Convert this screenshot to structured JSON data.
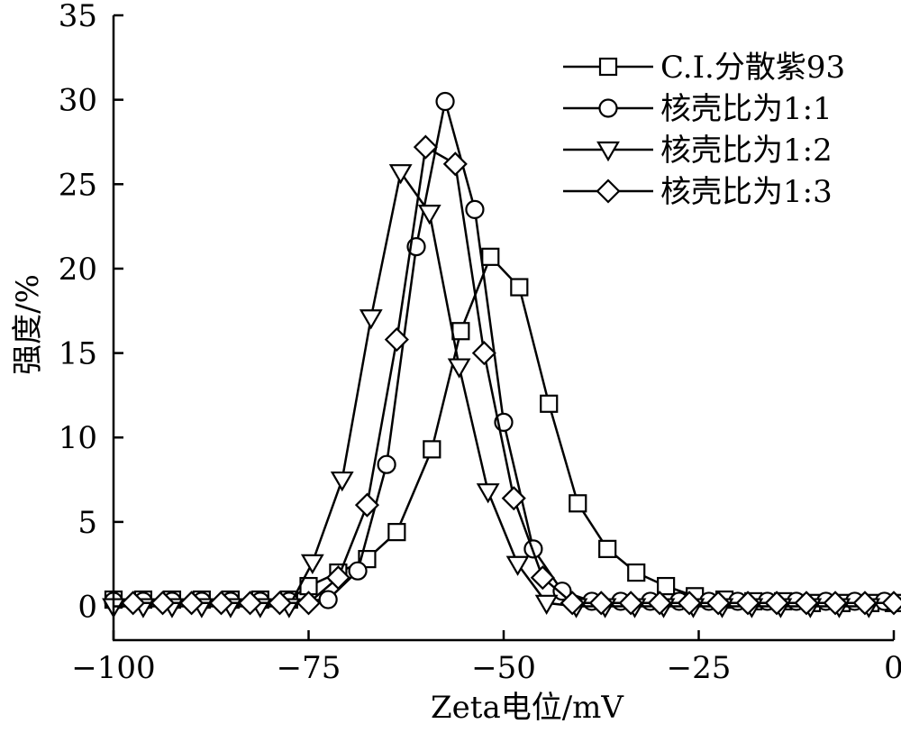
{
  "chart_data": {
    "type": "line",
    "xlabel": "Zeta电位/mV",
    "ylabel": "强度/%",
    "xlim": [
      -100,
      0
    ],
    "ylim": [
      -2,
      35
    ],
    "x_ticks": [
      -100,
      -75,
      -50,
      -25,
      0
    ],
    "x_tick_labels": [
      "−100",
      "−75",
      "−50",
      "−25",
      "0"
    ],
    "y_ticks": [
      0,
      5,
      10,
      15,
      20,
      25,
      30,
      35
    ],
    "y_tick_labels": [
      "0",
      "5",
      "10",
      "15",
      "20",
      "25",
      "30",
      "35"
    ],
    "grid": false,
    "legend_position": "top-right",
    "series": [
      {
        "name": "C.I.分散紫93",
        "marker": "square",
        "x": [
          -100,
          -96.2,
          -92.5,
          -88.7,
          -85,
          -81.2,
          -77.5,
          -75,
          -71.2,
          -67.5,
          -63.7,
          -59.2,
          -55.5,
          -51.7,
          -48,
          -44.2,
          -40.5,
          -36.7,
          -33,
          -29.2,
          -25.5,
          -21.7,
          -18,
          -14.2,
          -10.5,
          -6.7,
          -3,
          0
        ],
        "y": [
          0.4,
          0.4,
          0.4,
          0.4,
          0.4,
          0.4,
          0.4,
          1.2,
          2,
          2.8,
          4.4,
          9.3,
          16.3,
          20.7,
          18.9,
          12,
          6.1,
          3.4,
          2,
          1.2,
          0.6,
          0.4,
          0.3,
          0.3,
          0.2,
          0.2,
          0.2,
          0.2
        ]
      },
      {
        "name": "核壳比为1:1",
        "marker": "circle",
        "x": [
          -100,
          -96.2,
          -92.5,
          -88.7,
          -85,
          -81.2,
          -77.5,
          -72.5,
          -68.7,
          -65,
          -61.2,
          -57.5,
          -53.7,
          -50,
          -46.2,
          -42.5,
          -38.7,
          -35,
          -31.2,
          -27.5,
          -23.7,
          -20,
          -16.2,
          -12.5,
          -8.7,
          -5,
          -1.2
        ],
        "y": [
          0.3,
          0.3,
          0.3,
          0.3,
          0.3,
          0.3,
          0.3,
          0.4,
          2.1,
          8.4,
          21.3,
          29.9,
          23.5,
          10.9,
          3.4,
          0.9,
          0.3,
          0.3,
          0.3,
          0.3,
          0.3,
          0.3,
          0.3,
          0.3,
          0.3,
          0.3,
          0.3
        ]
      },
      {
        "name": "核壳比为1:2",
        "marker": "triangle-down",
        "x": [
          -100,
          -96.2,
          -92.5,
          -88.7,
          -85,
          -81.2,
          -77.5,
          -74.5,
          -70.7,
          -67,
          -63.2,
          -59.5,
          -55.7,
          -52,
          -48.2,
          -44.5,
          -40.7,
          -37,
          -33.2,
          -29.5,
          -25.7,
          -22,
          -18.2,
          -14.5,
          -10.7,
          -7,
          -3.2
        ],
        "y": [
          0,
          0,
          0,
          0,
          0,
          0,
          0,
          2.6,
          7.5,
          17.1,
          25.7,
          23.3,
          14.2,
          6.8,
          2.5,
          0.2,
          0,
          0,
          0,
          0,
          0,
          0,
          0,
          0,
          0,
          0,
          0
        ]
      },
      {
        "name": "核壳比为1:3",
        "marker": "diamond",
        "x": [
          -97.5,
          -93.7,
          -90,
          -86.2,
          -82.5,
          -78.7,
          -75,
          -71.2,
          -67.5,
          -63.7,
          -60,
          -56.2,
          -52.5,
          -48.7,
          -45,
          -41.2,
          -37.5,
          -33.7,
          -30,
          -26.2,
          -22.5,
          -18.7,
          -15,
          -11.2,
          -7.5,
          -3.7,
          0
        ],
        "y": [
          0.2,
          0.2,
          0.2,
          0.2,
          0.2,
          0.2,
          0.2,
          1.7,
          6,
          15.8,
          27.2,
          26.2,
          15,
          6.4,
          1.7,
          0.2,
          0.2,
          0.2,
          0.2,
          0.2,
          0.2,
          0.2,
          0.2,
          0.2,
          0.2,
          0.2,
          0.2
        ]
      }
    ]
  }
}
